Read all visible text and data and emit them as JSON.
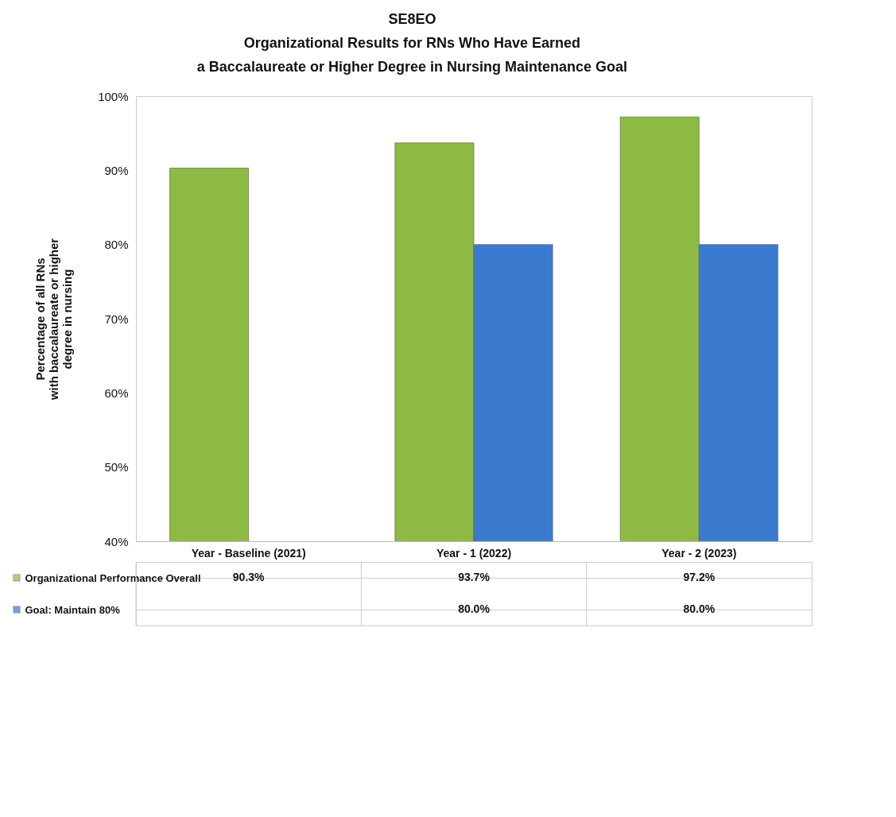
{
  "chart_data": {
    "type": "bar",
    "title": "SE8EO\nOrganizational Results for RNs Who Have Earned\na Baccalaureate or Higher Degree in Nursing Maintenance Goal",
    "ylabel": "Percentage  of all RNs\nwith baccalaureate or higher\ndegree in  nursing",
    "categories": [
      "Year - Baseline (2021)",
      "Year - 1  (2022)",
      "Year - 2  (2023)"
    ],
    "series": [
      {
        "name": "Organizational Performance Overall",
        "color": "#8dba43",
        "values": [
          90.3,
          93.7,
          97.2
        ],
        "value_labels": [
          "90.3%",
          "93.7%",
          "97.2%"
        ]
      },
      {
        "name": "Goal: Maintain 80%",
        "color": "#3a7bd0",
        "values": [
          null,
          80.0,
          80.0
        ],
        "value_labels": [
          null,
          "80.0%",
          "80.0%"
        ]
      }
    ],
    "ylim": [
      40,
      100
    ],
    "yticks": [
      {
        "value": 40,
        "label": "40%"
      },
      {
        "value": 50,
        "label": "50%"
      },
      {
        "value": 60,
        "label": "60%"
      },
      {
        "value": 70,
        "label": "70%"
      },
      {
        "value": 80,
        "label": "80%"
      },
      {
        "value": 90,
        "label": "90%"
      },
      {
        "value": 100,
        "label": "100%"
      }
    ],
    "grid": false,
    "legend": "bottom"
  }
}
